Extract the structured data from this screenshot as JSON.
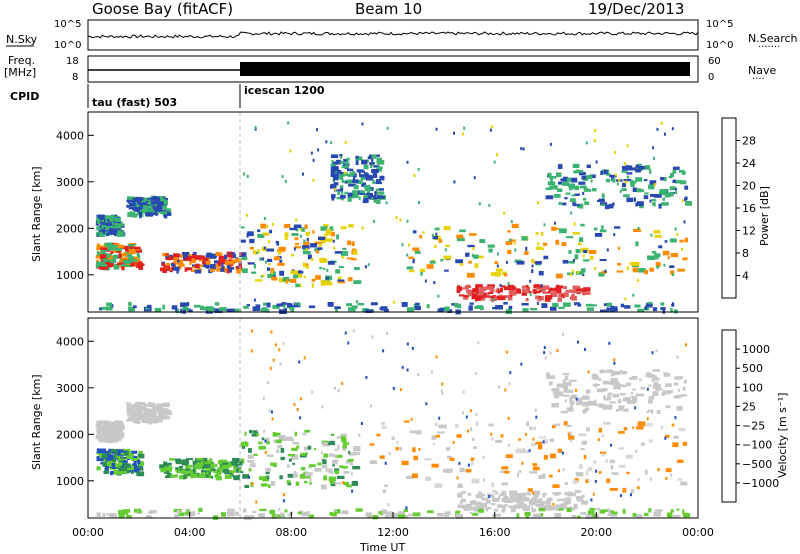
{
  "header": {
    "station": "Goose Bay (fitACF)",
    "beam": "Beam 10",
    "date": "19/Dec/2013"
  },
  "strip": {
    "nsky_label": "N.Sky",
    "nsearch_label": "N.Search",
    "nsearch_line": "·······",
    "noise_ticks": [
      "10^5",
      "10^0"
    ],
    "freq_label_1": "Freq.",
    "freq_label_2": "[MHz]",
    "freq_ticks": [
      "18",
      "8"
    ],
    "nave_label": "Nave",
    "nave_line": "····",
    "nave_ticks": [
      "60",
      "0"
    ],
    "cpid_label": "CPID",
    "cpid_segments": [
      {
        "text": "tau (fast) 503",
        "start_h": 0
      },
      {
        "text": "icescan 1200",
        "start_h": 6
      }
    ]
  },
  "chart_data": [
    {
      "type": "heatmap",
      "name": "power",
      "ylabel": "Slant Range [km]",
      "xlabel": "",
      "colorbar_label": "Power [dB]",
      "colorbar_ticks": [
        "28",
        "24",
        "20",
        "16",
        "12",
        "8",
        "4"
      ],
      "colorbar_colors": [
        "#ff0000",
        "#ff5a00",
        "#ffa500",
        "#e6e600",
        "#9acd32",
        "#50c878",
        "#2e8b57",
        "#3050c0",
        "#0000ff"
      ],
      "yticks": [
        "4000",
        "3000",
        "2000",
        "1000"
      ],
      "ylim": [
        200,
        4500
      ]
    },
    {
      "type": "heatmap",
      "name": "velocity",
      "ylabel": "Slant Range [km]",
      "xlabel": "Time UT",
      "colorbar_label": "Velocity [m s⁻¹]",
      "colorbar_ticks": [
        "1000",
        "500",
        "100",
        "25",
        "−25",
        "−100",
        "−500",
        "−1000"
      ],
      "colorbar_colors": [
        "#1e3cc8",
        "#2e8b57",
        "#32cd32",
        "#aaaaaa",
        "#cccccc",
        "#ffa500",
        "#ff6000",
        "#ff0000"
      ],
      "xticks": [
        "00:00",
        "04:00",
        "08:00",
        "12:00",
        "16:00",
        "20:00",
        "00:00"
      ],
      "yticks": [
        "4000",
        "3000",
        "2000",
        "1000"
      ],
      "ylim": [
        200,
        4500
      ],
      "xlim": [
        0,
        24
      ]
    }
  ],
  "colors": {
    "power_bands": {
      "red": "#e02020",
      "orange": "#ff8c00",
      "yellow": "#e6d200",
      "green": "#3cb371",
      "teal": "#2e8b57",
      "blue": "#2848b0"
    },
    "velocity_bands": {
      "grey": "#c8c8c8",
      "lightgreen": "#66cc33",
      "green": "#2e8b57",
      "blue": "#2050c0",
      "orange": "#ff8c00",
      "red": "#e02020"
    }
  }
}
